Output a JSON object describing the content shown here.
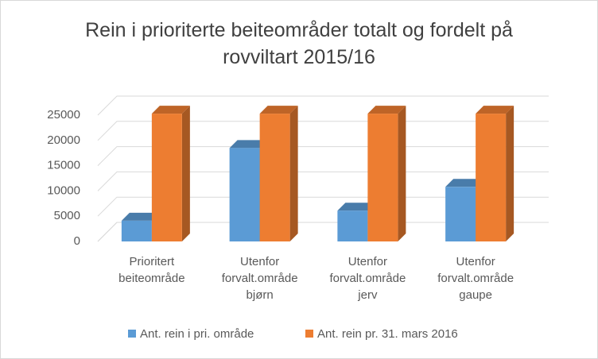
{
  "chart_data": {
    "type": "bar3d",
    "title": "Rein i prioriterte beiteområder totalt og fordelt på rovviltart 2015/16",
    "categories": [
      "Prioritert beiteområde",
      "Utenfor forvalt.område bjørn",
      "Utenfor forvalt.område jerv",
      "Utenfor forvalt.område gaupe"
    ],
    "series": [
      {
        "name": "Ant. rein i pri. område",
        "color": "#5b9bd5",
        "values": [
          4100,
          18500,
          6100,
          10800
        ]
      },
      {
        "name": "Ant. rein pr. 31. mars 2016",
        "color": "#ed7d31",
        "values": [
          25300,
          25300,
          25300,
          25300
        ]
      }
    ],
    "ylim": [
      0,
      25000
    ],
    "yticks": [
      0,
      5000,
      10000,
      15000,
      20000,
      25000
    ],
    "grid": true,
    "legend": "bottom"
  }
}
